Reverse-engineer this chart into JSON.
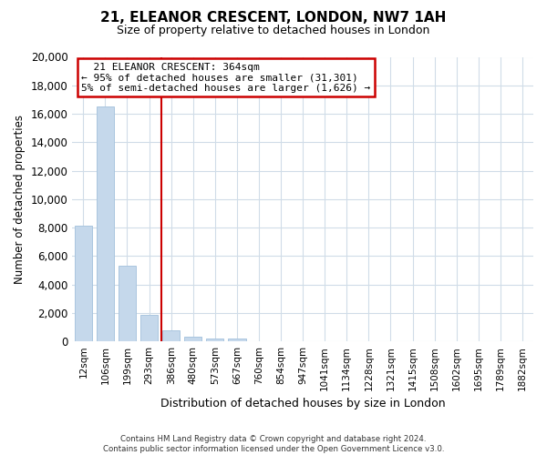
{
  "title": "21, ELEANOR CRESCENT, LONDON, NW7 1AH",
  "subtitle": "Size of property relative to detached houses in London",
  "xlabel": "Distribution of detached houses by size in London",
  "ylabel": "Number of detached properties",
  "bar_labels": [
    "12sqm",
    "106sqm",
    "199sqm",
    "293sqm",
    "386sqm",
    "480sqm",
    "573sqm",
    "667sqm",
    "760sqm",
    "854sqm",
    "947sqm",
    "1041sqm",
    "1134sqm",
    "1228sqm",
    "1321sqm",
    "1415sqm",
    "1508sqm",
    "1602sqm",
    "1695sqm",
    "1789sqm",
    "1882sqm"
  ],
  "bar_values": [
    8100,
    16500,
    5300,
    1850,
    800,
    300,
    200,
    200,
    0,
    0,
    0,
    0,
    0,
    0,
    0,
    0,
    0,
    0,
    0,
    0,
    0
  ],
  "bar_color": "#c5d8eb",
  "bar_edge_color": "#aac5df",
  "vline_color": "#cc0000",
  "ylim": [
    0,
    20000
  ],
  "yticks": [
    0,
    2000,
    4000,
    6000,
    8000,
    10000,
    12000,
    14000,
    16000,
    18000,
    20000
  ],
  "annotation_title": "21 ELEANOR CRESCENT: 364sqm",
  "annotation_line1": "← 95% of detached houses are smaller (31,301)",
  "annotation_line2": "5% of semi-detached houses are larger (1,626) →",
  "annotation_box_color": "white",
  "annotation_box_edge_color": "#cc0000",
  "footer_line1": "Contains HM Land Registry data © Crown copyright and database right 2024.",
  "footer_line2": "Contains public sector information licensed under the Open Government Licence v3.0.",
  "bg_color": "white",
  "grid_color": "#d0dce8"
}
